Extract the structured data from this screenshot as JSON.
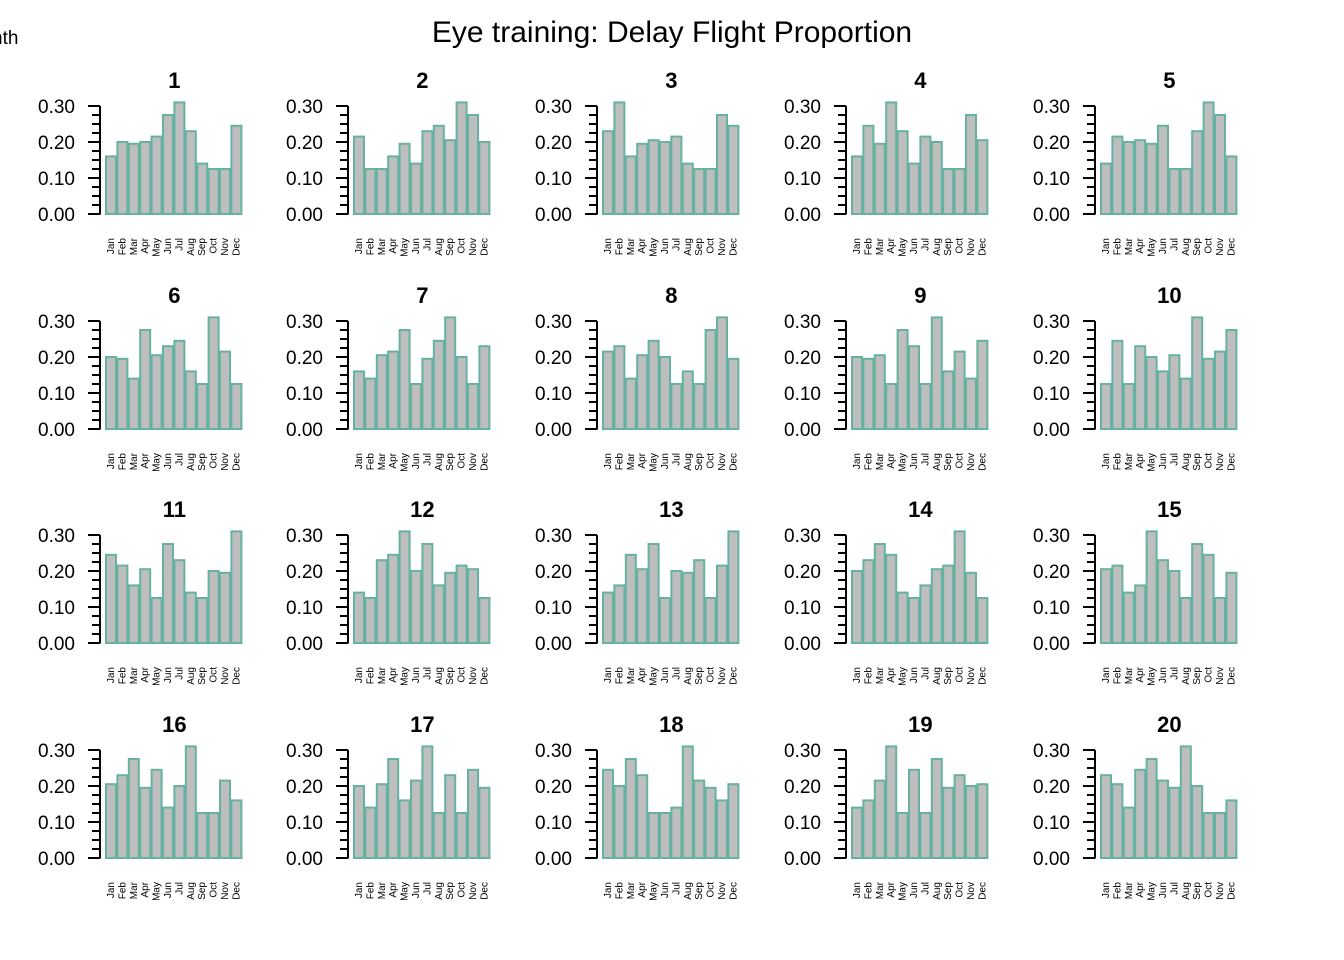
{
  "title": "Eye training: Delay Flight Proportion",
  "corner_label": "nth",
  "colors": {
    "bar_fill": "#bebebe",
    "bar_stroke": "#66b2a0",
    "axis": "#000000"
  },
  "chart_data": {
    "type": "bar",
    "layout": "small-multiples grid, 4 rows x 5 columns",
    "categories": [
      "Jan",
      "Feb",
      "Mar",
      "Apr",
      "May",
      "Jun",
      "Jul",
      "Aug",
      "Sep",
      "Oct",
      "Nov",
      "Dec"
    ],
    "ylim": [
      0,
      0.3
    ],
    "yticks": [
      "0.00",
      "0.10",
      "0.20",
      "0.30"
    ],
    "grid": false,
    "panels": [
      {
        "title": "1",
        "values": [
          0.16,
          0.2,
          0.195,
          0.2,
          0.215,
          0.275,
          0.31,
          0.23,
          0.14,
          0.125,
          0.125,
          0.245
        ]
      },
      {
        "title": "2",
        "values": [
          0.215,
          0.125,
          0.125,
          0.16,
          0.195,
          0.14,
          0.23,
          0.245,
          0.205,
          0.31,
          0.275,
          0.2
        ]
      },
      {
        "title": "3",
        "values": [
          0.23,
          0.31,
          0.16,
          0.195,
          0.205,
          0.2,
          0.215,
          0.14,
          0.125,
          0.125,
          0.275,
          0.245
        ]
      },
      {
        "title": "4",
        "values": [
          0.16,
          0.245,
          0.195,
          0.31,
          0.23,
          0.14,
          0.215,
          0.2,
          0.125,
          0.125,
          0.275,
          0.205
        ]
      },
      {
        "title": "5",
        "values": [
          0.14,
          0.215,
          0.2,
          0.205,
          0.195,
          0.245,
          0.125,
          0.125,
          0.23,
          0.31,
          0.275,
          0.16
        ]
      },
      {
        "title": "6",
        "values": [
          0.2,
          0.195,
          0.14,
          0.275,
          0.205,
          0.23,
          0.245,
          0.16,
          0.125,
          0.31,
          0.215,
          0.125
        ]
      },
      {
        "title": "7",
        "values": [
          0.16,
          0.14,
          0.205,
          0.215,
          0.275,
          0.125,
          0.195,
          0.245,
          0.31,
          0.2,
          0.125,
          0.23
        ]
      },
      {
        "title": "8",
        "values": [
          0.215,
          0.23,
          0.14,
          0.205,
          0.245,
          0.2,
          0.125,
          0.16,
          0.125,
          0.275,
          0.31,
          0.195
        ]
      },
      {
        "title": "9",
        "values": [
          0.2,
          0.195,
          0.205,
          0.125,
          0.275,
          0.23,
          0.125,
          0.31,
          0.16,
          0.215,
          0.14,
          0.245
        ]
      },
      {
        "title": "10",
        "values": [
          0.125,
          0.245,
          0.125,
          0.23,
          0.2,
          0.16,
          0.205,
          0.14,
          0.31,
          0.195,
          0.215,
          0.275
        ]
      },
      {
        "title": "11",
        "values": [
          0.245,
          0.215,
          0.16,
          0.205,
          0.125,
          0.275,
          0.23,
          0.14,
          0.125,
          0.2,
          0.195,
          0.31
        ]
      },
      {
        "title": "12",
        "values": [
          0.14,
          0.125,
          0.23,
          0.245,
          0.31,
          0.2,
          0.275,
          0.16,
          0.195,
          0.215,
          0.205,
          0.125
        ]
      },
      {
        "title": "13",
        "values": [
          0.14,
          0.16,
          0.245,
          0.205,
          0.275,
          0.125,
          0.2,
          0.195,
          0.23,
          0.125,
          0.215,
          0.31
        ]
      },
      {
        "title": "14",
        "values": [
          0.2,
          0.23,
          0.275,
          0.245,
          0.14,
          0.125,
          0.16,
          0.205,
          0.215,
          0.31,
          0.195,
          0.125
        ]
      },
      {
        "title": "15",
        "values": [
          0.205,
          0.215,
          0.14,
          0.16,
          0.31,
          0.23,
          0.2,
          0.125,
          0.275,
          0.245,
          0.125,
          0.195
        ]
      },
      {
        "title": "16",
        "values": [
          0.205,
          0.23,
          0.275,
          0.195,
          0.245,
          0.14,
          0.2,
          0.31,
          0.125,
          0.125,
          0.215,
          0.16
        ]
      },
      {
        "title": "17",
        "values": [
          0.2,
          0.14,
          0.205,
          0.275,
          0.16,
          0.215,
          0.31,
          0.125,
          0.23,
          0.125,
          0.245,
          0.195
        ]
      },
      {
        "title": "18",
        "values": [
          0.245,
          0.2,
          0.275,
          0.23,
          0.125,
          0.125,
          0.14,
          0.31,
          0.215,
          0.195,
          0.16,
          0.205
        ]
      },
      {
        "title": "19",
        "values": [
          0.14,
          0.16,
          0.215,
          0.31,
          0.125,
          0.245,
          0.125,
          0.275,
          0.195,
          0.23,
          0.2,
          0.205
        ]
      },
      {
        "title": "20",
        "values": [
          0.23,
          0.205,
          0.14,
          0.245,
          0.275,
          0.215,
          0.195,
          0.31,
          0.2,
          0.125,
          0.125,
          0.16
        ]
      }
    ]
  }
}
